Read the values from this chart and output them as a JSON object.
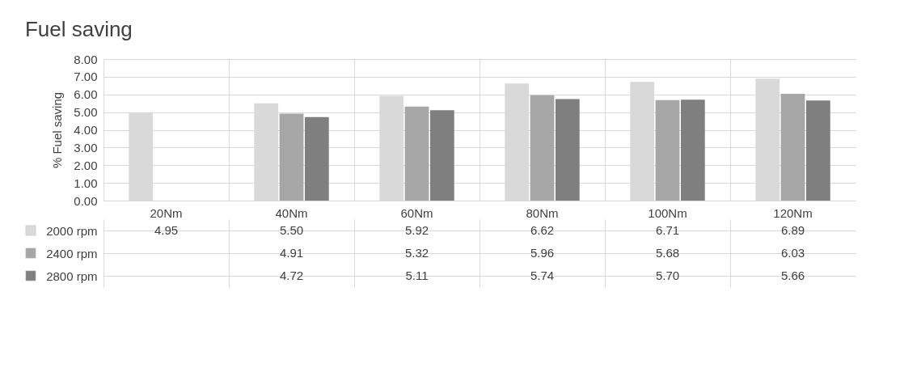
{
  "chart_data": {
    "type": "bar",
    "title": "Fuel saving",
    "ylabel": "% Fuel saving",
    "categories": [
      "20Nm",
      "40Nm",
      "60Nm",
      "80Nm",
      "100Nm",
      "120Nm"
    ],
    "series": [
      {
        "name": "2000 rpm",
        "color": "#d9d9d9",
        "values": [
          4.95,
          5.5,
          5.92,
          6.62,
          6.71,
          6.89
        ],
        "value_labels": [
          "4.95",
          "5.50",
          "5.92",
          "6.62",
          "6.71",
          "6.89"
        ]
      },
      {
        "name": "2400 rpm",
        "color": "#a6a6a6",
        "values": [
          null,
          4.91,
          5.32,
          5.96,
          5.68,
          6.03
        ],
        "value_labels": [
          null,
          "4.91",
          "5.32",
          "5.96",
          "5.68",
          "6.03"
        ]
      },
      {
        "name": "2800 rpm",
        "color": "#7f7f7f",
        "values": [
          null,
          4.72,
          5.11,
          5.74,
          5.7,
          5.66
        ],
        "value_labels": [
          null,
          "4.72",
          "5.11",
          "5.74",
          "5.70",
          "5.66"
        ]
      }
    ],
    "ylim": [
      0,
      8
    ],
    "yticks": [
      {
        "value": 0,
        "label": "0.00"
      },
      {
        "value": 1,
        "label": "1.00"
      },
      {
        "value": 2,
        "label": "2.00"
      },
      {
        "value": 3,
        "label": "3.00"
      },
      {
        "value": 4,
        "label": "4.00"
      },
      {
        "value": 5,
        "label": "5.00"
      },
      {
        "value": 6,
        "label": "6.00"
      },
      {
        "value": 7,
        "label": "7.00"
      },
      {
        "value": 8,
        "label": "8.00"
      }
    ],
    "grid": "y",
    "legend": "bottom left"
  }
}
